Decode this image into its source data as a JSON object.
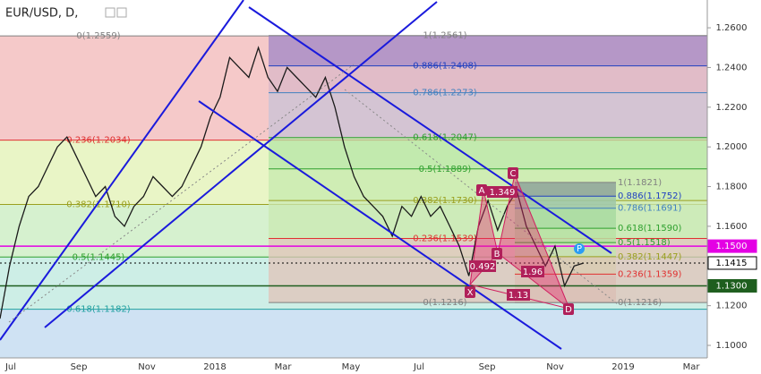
{
  "chart_data": {
    "type": "line",
    "title": "EUR/USD, D,",
    "color": "#1a1a1a",
    "values": [
      1.1135,
      1.14,
      1.16,
      1.175,
      1.18,
      1.19,
      1.2,
      1.205,
      1.195,
      1.185,
      1.175,
      1.18,
      1.165,
      1.16,
      1.17,
      1.175,
      1.185,
      1.18,
      1.175,
      1.18,
      1.19,
      1.2,
      1.215,
      1.225,
      1.245,
      1.24,
      1.235,
      1.25,
      1.235,
      1.228,
      1.24,
      1.235,
      1.23,
      1.225,
      1.235,
      1.22,
      1.2,
      1.185,
      1.175,
      1.17,
      1.165,
      1.155,
      1.17,
      1.165,
      1.175,
      1.165,
      1.17,
      1.16,
      1.15,
      1.135,
      1.16,
      1.173,
      1.158,
      1.17,
      1.178,
      1.16,
      1.15,
      1.14,
      1.15,
      1.13,
      1.14,
      1.1415
    ],
    "ylim": [
      1.0937,
      1.274
    ],
    "yticks": [
      {
        "value": 1.26,
        "label": "1.2600"
      },
      {
        "value": 1.24,
        "label": "1.2400"
      },
      {
        "value": 1.22,
        "label": "1.2200"
      },
      {
        "value": 1.2,
        "label": "1.2000"
      },
      {
        "value": 1.18,
        "label": "1.1800"
      },
      {
        "value": 1.16,
        "label": "1.1600"
      },
      {
        "value": 1.14,
        "label": "1.1400"
      },
      {
        "value": 1.12,
        "label": "1.1200"
      },
      {
        "value": 1.1,
        "label": "1.1000"
      }
    ],
    "x_labels": [
      "Jul",
      "Sep",
      "Nov",
      "2018",
      "Mar",
      "May",
      "Jul",
      "Sep",
      "Nov",
      "2019",
      "Mar"
    ],
    "price_markers": [
      {
        "value": 1.15,
        "label": "1.1500",
        "color": "#e400e4"
      },
      {
        "value": 1.1415,
        "label": "1.1415",
        "color": "#000000"
      },
      {
        "value": 1.13,
        "label": "1.1300",
        "color": "#1e5e1e"
      }
    ],
    "fib_sets": [
      {
        "levels": [
          {
            "label": "0(1.2559)",
            "price": 1.2559,
            "color": "#808080",
            "fill": "#f5c9c9"
          },
          {
            "label": "0.236(1.2034)",
            "price": 1.2034,
            "color": "#e03030",
            "fill": "#e9f5c6"
          },
          {
            "label": "0.382(1.1710)",
            "price": 1.171,
            "color": "#9aa020",
            "fill": "#d6f1cf"
          },
          {
            "label": "0.5(1.1445)",
            "price": 1.1445,
            "color": "#2ea02e",
            "fill": "#cdeee6"
          },
          {
            "label": "0.618(1.1182)",
            "price": 1.1182,
            "color": "#20a0a0",
            "fill": "#cfe2f3"
          }
        ]
      },
      {
        "levels": [
          {
            "label": "1(1.2561)",
            "price": 1.2561,
            "color": "#808080",
            "fill": "#9f86c6"
          },
          {
            "label": "0.886(1.2408)",
            "price": 1.2408,
            "color": "#2040c0",
            "fill": "#d9b7c7"
          },
          {
            "label": "0.786(1.2273)",
            "price": 1.2273,
            "color": "#4080c0",
            "fill": "#c8c2d6"
          },
          {
            "label": "0.618(1.2047)",
            "price": 1.2047,
            "color": "#2ea02e",
            "fill": "#b4e5a6"
          },
          {
            "label": "0.5(1.1889)",
            "price": 1.1889,
            "color": "#2ea02e",
            "fill": "#c6eaae"
          },
          {
            "label": "0.382(1.1730)",
            "price": 1.173,
            "color": "#9aa020",
            "fill": "#c9e8b2"
          },
          {
            "label": "0.236(1.1539)",
            "price": 1.1539,
            "color": "#e03030",
            "fill": "#e0c3b8"
          },
          {
            "label": "0(1.1216)",
            "price": 1.1216,
            "color": "#808080",
            "fill": "#e0c3b8"
          }
        ]
      },
      {
        "levels": [
          {
            "label": "1(1.1821)",
            "price": 1.1821,
            "color": "#808080",
            "fill": "#8ea39a"
          },
          {
            "label": "0.886(1.1752)",
            "price": 1.1752,
            "color": "#2040c0",
            "fill": "#9fc7a8"
          },
          {
            "label": "0.786(1.1691)",
            "price": 1.1691,
            "color": "#4080c0",
            "fill": "#a8dba0"
          },
          {
            "label": "0.618(1.1590)",
            "price": 1.159,
            "color": "#2ea02e",
            "fill": "#b7e2a3"
          },
          {
            "label": "0.5(1.1518)",
            "price": 1.1518,
            "color": "#2ea02e",
            "fill": "#c4e3b0"
          },
          {
            "label": "0.382(1.1447)",
            "price": 1.1447,
            "color": "#9aa020",
            "fill": "#d8cbb3"
          },
          {
            "label": "0.236(1.1359)",
            "price": 1.1359,
            "color": "#e03030",
            "fill": "#dbbfb6"
          },
          {
            "label": "0(1.1216)",
            "price": 1.1216,
            "color": "#808080",
            "fill": "#dbbfb6"
          }
        ]
      }
    ],
    "pattern_points": [
      "X",
      "A",
      "B",
      "C",
      "D",
      "P"
    ],
    "pattern_ratios": [
      "1.349",
      "0.492",
      "1.96",
      "1.13"
    ]
  }
}
